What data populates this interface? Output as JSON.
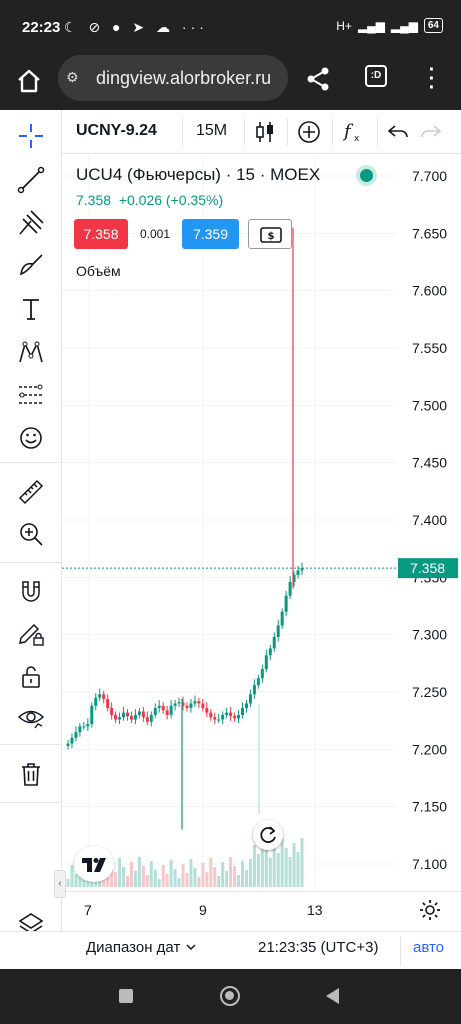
{
  "status_bar": {
    "time": "22:23",
    "left_icons": [
      "moon-icon",
      "vpn-icon",
      "chat-icon",
      "telegram-icon",
      "cloud-icon",
      "more-icon"
    ],
    "network": "H+",
    "battery": "64"
  },
  "browser": {
    "url": "dingview.alorbroker.ru",
    "tab_label": ":D"
  },
  "toolbar": {
    "symbol": "UCNY-9.24",
    "interval": "15M"
  },
  "legend": {
    "title": "UCU4 (Фьючерсы) · 15 · MOEX",
    "last": "7.358",
    "change": "+0.026 (+0.35%)",
    "sell_price": "7.358",
    "spread": "0.001",
    "buy_price": "7.359",
    "volume_label": "Объём"
  },
  "colors": {
    "up": "#089981",
    "down": "#f23645",
    "buy": "#2196f3",
    "accent": "#2962ff"
  },
  "chart_data": {
    "type": "candlestick",
    "price_axis_ticks": [
      "7.700",
      "7.650",
      "7.600",
      "7.550",
      "7.500",
      "7.450",
      "7.400",
      "7.350",
      "7.300",
      "7.250",
      "7.200",
      "7.150",
      "7.100"
    ],
    "ylim": [
      7.08,
      7.71
    ],
    "x_tick_labels": [
      "7",
      "9",
      "13"
    ],
    "last_price": 7.358,
    "last_price_label": "7.358",
    "series": [
      {
        "name": "price",
        "values": [
          7.205,
          7.21,
          7.215,
          7.22,
          7.22,
          7.222,
          7.238,
          7.245,
          7.248,
          7.244,
          7.236,
          7.23,
          7.226,
          7.228,
          7.232,
          7.229,
          7.226,
          7.23,
          7.233,
          7.228,
          7.224,
          7.23,
          7.236,
          7.238,
          7.234,
          7.23,
          7.238,
          7.24,
          7.241,
          7.238,
          7.236,
          7.24,
          7.242,
          7.24,
          7.236,
          7.232,
          7.228,
          7.226,
          7.226,
          7.23,
          7.232,
          7.229,
          7.227,
          7.23,
          7.236,
          7.24,
          7.248,
          7.256,
          7.262,
          7.27,
          7.282,
          7.288,
          7.298,
          7.308,
          7.32,
          7.334,
          7.346,
          7.352,
          7.356,
          7.358
        ]
      },
      {
        "name": "wick_low_spikes",
        "values": [
          7.13,
          7.143
        ]
      },
      {
        "name": "wick_high_spike",
        "values": [
          7.655
        ]
      }
    ]
  },
  "bottom_bar": {
    "date_range": "Диапазон дат",
    "time": "21:23:35 (UTC+3)",
    "auto": "авто"
  }
}
